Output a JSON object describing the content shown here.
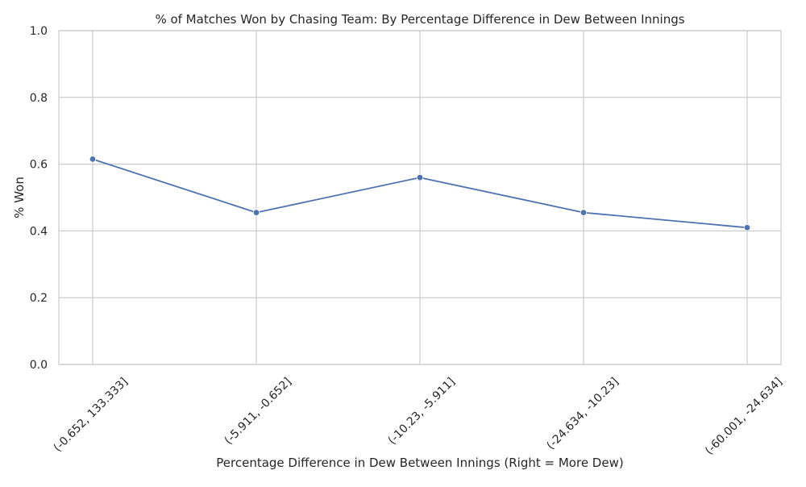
{
  "chart_data": {
    "type": "line",
    "title": "% of Matches Won by Chasing Team: By Percentage Difference in Dew Between Innings",
    "xlabel": "Percentage Difference in Dew Between Innings (Right = More Dew)",
    "ylabel": "% Won",
    "categories": [
      "(-0.652, 133.333]",
      "(-5.911, -0.652]",
      "(-10.23, -5.911]",
      "(-24.634, -10.23]",
      "(-60.001, -24.634]"
    ],
    "series": [
      {
        "values": [
          0.615,
          0.455,
          0.56,
          0.455,
          0.41
        ],
        "color": "#4c72b0"
      }
    ],
    "ylim": [
      0,
      1
    ],
    "yticks": [
      "0.0",
      "0.2",
      "0.4",
      "0.6",
      "0.8",
      "1.0"
    ],
    "grid": true,
    "legend": "none",
    "colors": {
      "grid": "#cccccc",
      "axis_text": "#262626",
      "line": "#4c72b0"
    }
  }
}
